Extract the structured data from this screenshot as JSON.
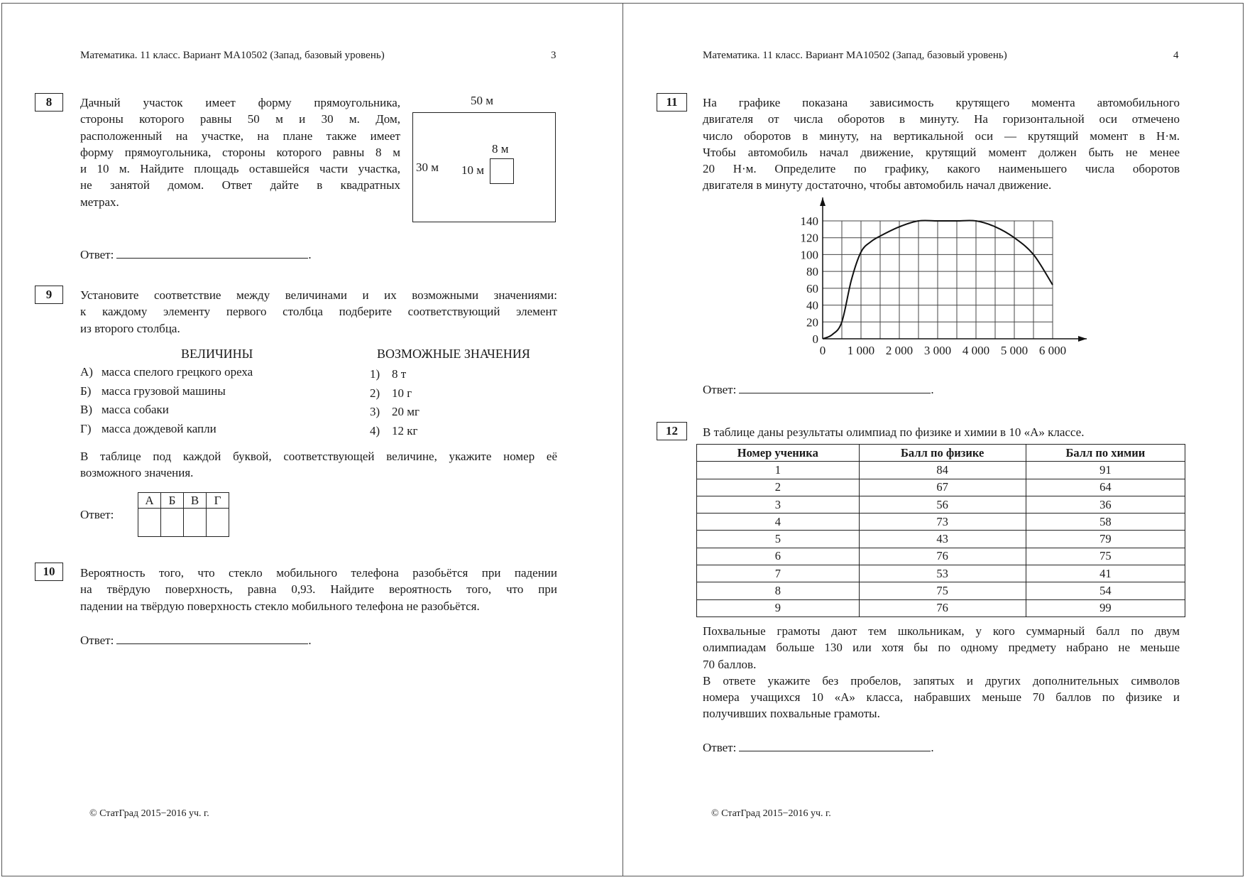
{
  "left_page": {
    "header": "Математика. 11 класс. Вариант МА10502 (Запад, базовый уровень)",
    "page_number": "3",
    "footer": "© СтатГрад 2015−2016 уч. г.",
    "q8": {
      "number": "8",
      "lines": [
        "Дачный участок имеет форму прямоугольника,",
        "стороны которого равны 50 м и 30 м. Дом,",
        "расположенный на участке, на плане также имеет",
        "форму прямоугольника, стороны которого равны 8 м",
        "и 10 м. Найдите площадь оставшейся части участка,",
        "не занятой домом. Ответ дайте в квадратных",
        "метрах."
      ],
      "figure": {
        "plot_width": "50 м",
        "plot_height": "30 м",
        "house_width": "8 м",
        "house_height": "10 м"
      },
      "answer_label": "Ответ:"
    },
    "q9": {
      "number": "9",
      "lines": [
        "Установите соответствие между величинами и их возможными значениями:",
        "к каждому элементу первого столбца подберите соответствующий элемент",
        "из второго столбца."
      ],
      "col1_title": "ВЕЛИЧИНЫ",
      "col2_title": "ВОЗМОЖНЫЕ ЗНАЧЕНИЯ",
      "quantities": [
        {
          "key": "А)",
          "text": "масса спелого грецкого ореха"
        },
        {
          "key": "Б)",
          "text": "масса грузовой машины"
        },
        {
          "key": "В)",
          "text": "масса собаки"
        },
        {
          "key": "Г)",
          "text": "масса дождевой капли"
        }
      ],
      "values": [
        {
          "key": "1)",
          "text": "8 т"
        },
        {
          "key": "2)",
          "text": "10 г"
        },
        {
          "key": "3)",
          "text": "20 мг"
        },
        {
          "key": "4)",
          "text": "12 кг"
        }
      ],
      "instruction": [
        "В таблице под каждой буквой, соответствующей величине, укажите номер её",
        "возможного значения."
      ],
      "answer_label": "Ответ:",
      "answer_letters": [
        "А",
        "Б",
        "В",
        "Г"
      ]
    },
    "q10": {
      "number": "10",
      "lines": [
        "Вероятность того, что стекло мобильного телефона разобьётся при падении",
        "на твёрдую поверхность, равна 0,93. Найдите вероятность того, что при",
        "падении на твёрдую поверхность стекло мобильного телефона не разобьётся."
      ],
      "answer_label": "Ответ:"
    }
  },
  "right_page": {
    "header": "Математика. 11 класс. Вариант МА10502 (Запад, базовый уровень)",
    "page_number": "4",
    "footer": "© СтатГрад 2015−2016 уч. г.",
    "q11": {
      "number": "11",
      "lines": [
        "На графике показана зависимость крутящего момента автомобильного",
        "двигателя от числа оборотов в минуту. На горизонтальной оси отмечено",
        "число оборотов в минуту, на вертикальной оси — крутящий момент в Н·м.",
        "Чтобы автомобиль начал движение, крутящий момент должен быть не менее",
        "20 Н·м. Определите по графику, какого наименьшего числа оборотов",
        "двигателя в минуту достаточно, чтобы автомобиль начал движение."
      ],
      "answer_label": "Ответ:"
    },
    "q12": {
      "number": "12",
      "intro": "В таблице даны результаты олимпиад по физике и химии в 10 «А» классе.",
      "columns": [
        "Номер ученика",
        "Балл по физике",
        "Балл по химии"
      ],
      "rows": [
        [
          "1",
          "84",
          "91"
        ],
        [
          "2",
          "67",
          "64"
        ],
        [
          "3",
          "56",
          "36"
        ],
        [
          "4",
          "73",
          "58"
        ],
        [
          "5",
          "43",
          "79"
        ],
        [
          "6",
          "76",
          "75"
        ],
        [
          "7",
          "53",
          "41"
        ],
        [
          "8",
          "75",
          "54"
        ],
        [
          "9",
          "76",
          "99"
        ]
      ],
      "lines": [
        "Похвальные грамоты дают тем школьникам, у кого суммарный балл по двум",
        "олимпиадам больше 130 или хотя бы по одному предмету набрано не меньше",
        "70 баллов.",
        "В ответе укажите без пробелов, запятых и других дополнительных символов",
        "номера учащихся 10 «А» класса, набравших меньше 70 баллов по физике и",
        "получивших похвальные грамоты."
      ],
      "answer_label": "Ответ:"
    }
  },
  "chart_data": {
    "type": "line",
    "title": "",
    "xlabel": "",
    "ylabel": "",
    "xlim": [
      0,
      6000
    ],
    "ylim": [
      0,
      140
    ],
    "grid": true,
    "x_grid_step": 500,
    "y_grid_step": 20,
    "x_ticks": [
      "0",
      "1 000",
      "2 000",
      "3 000",
      "4 000",
      "5 000",
      "6 000"
    ],
    "x_tick_values": [
      0,
      1000,
      2000,
      3000,
      4000,
      5000,
      6000
    ],
    "y_ticks": [
      "0",
      "20",
      "40",
      "60",
      "80",
      "100",
      "120",
      "140"
    ],
    "y_tick_values": [
      0,
      20,
      40,
      60,
      80,
      100,
      120,
      140
    ],
    "x": [
      0,
      250,
      500,
      750,
      1000,
      1250,
      1500,
      2000,
      2500,
      3000,
      3500,
      4000,
      4500,
      5000,
      5500,
      6000
    ],
    "y": [
      0,
      5,
      20,
      70,
      103,
      115,
      122,
      133,
      140,
      140,
      140,
      140,
      133,
      120,
      100,
      64
    ]
  }
}
